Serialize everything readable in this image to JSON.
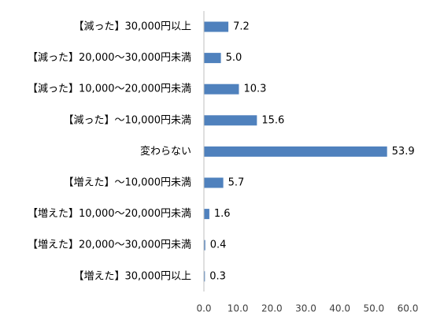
{
  "chart_data": {
    "type": "bar",
    "orientation": "horizontal",
    "categories": [
      "【減った】30,000円以上",
      "【減った】20,000～30,000円未満",
      "【減った】10,000～20,000円未満",
      "【減った】～10,000円未満",
      "変わらない",
      "【増えた】～10,000円未満",
      "【増えた】10,000～20,000円未満",
      "【増えた】20,000～30,000円未満",
      "【増えた】30,000円以上"
    ],
    "values": [
      7.2,
      5.0,
      10.3,
      15.6,
      53.9,
      5.7,
      1.6,
      0.4,
      0.3
    ],
    "value_labels": [
      "7.2",
      "5.0",
      "10.3",
      "15.6",
      "53.9",
      "5.7",
      "1.6",
      "0.4",
      "0.3"
    ],
    "xlim": [
      0,
      60
    ],
    "x_ticks": [
      "0.0",
      "10.0",
      "20.0",
      "30.0",
      "40.0",
      "50.0",
      "60.0"
    ],
    "title": "",
    "xlabel": "",
    "ylabel": "",
    "grid": false,
    "legend": "none",
    "bar_color": "#4F81BD",
    "axis_color": "#BFBFBF"
  }
}
